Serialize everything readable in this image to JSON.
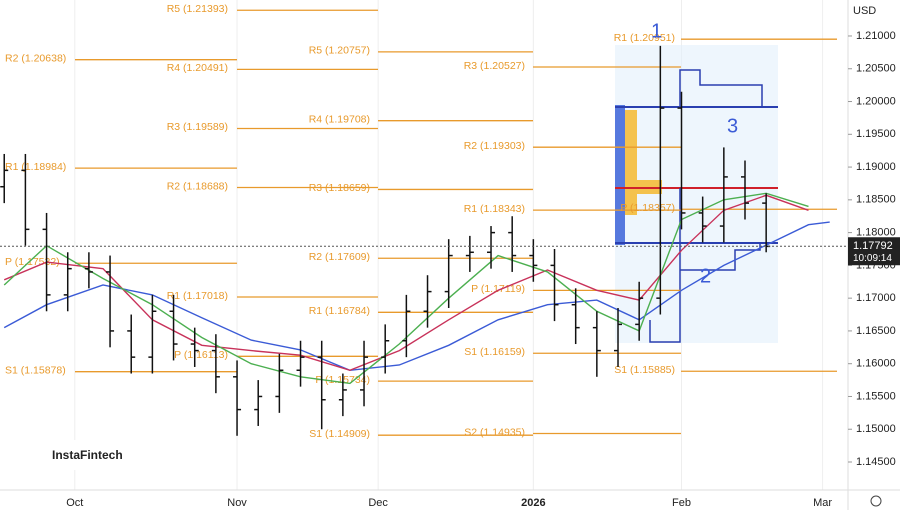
{
  "chart_data": {
    "type": "ohlc",
    "currency": "USD",
    "brand": "InstaFintech",
    "color": "#111111",
    "x": [
      -10,
      -7,
      -4,
      -1,
      2,
      5,
      8,
      11,
      14,
      17,
      20,
      23,
      26,
      29,
      32,
      35,
      38,
      41,
      44,
      47,
      50,
      53,
      56,
      59,
      62,
      65,
      68,
      71,
      74,
      77,
      80,
      83,
      86,
      89,
      92,
      95,
      98
    ],
    "open": [
      1.187,
      1.1895,
      1.1805,
      1.1705,
      1.1745,
      1.174,
      1.165,
      1.161,
      1.168,
      1.163,
      1.162,
      1.158,
      1.153,
      1.155,
      1.159,
      1.161,
      1.1545,
      1.156,
      1.161,
      1.1635,
      1.168,
      1.171,
      1.1765,
      1.177,
      1.18,
      1.1765,
      1.175,
      1.169,
      1.1655,
      1.162,
      1.166,
      1.17,
      1.199,
      1.183,
      1.181,
      1.1885,
      1.1845
    ],
    "high": [
      1.192,
      1.192,
      1.183,
      1.177,
      1.177,
      1.1765,
      1.1675,
      1.1705,
      1.1705,
      1.1655,
      1.1645,
      1.1605,
      1.1575,
      1.1615,
      1.1635,
      1.1635,
      1.1585,
      1.1635,
      1.166,
      1.1705,
      1.1735,
      1.179,
      1.1795,
      1.181,
      1.1825,
      1.179,
      1.1775,
      1.1715,
      1.168,
      1.1685,
      1.1725,
      1.2085,
      1.2015,
      1.1855,
      1.193,
      1.191,
      1.186
    ],
    "low": [
      1.1845,
      1.178,
      1.168,
      1.168,
      1.1715,
      1.1625,
      1.1585,
      1.1585,
      1.1605,
      1.1595,
      1.1555,
      1.149,
      1.1505,
      1.1525,
      1.1565,
      1.15,
      1.152,
      1.1535,
      1.1585,
      1.161,
      1.1655,
      1.1685,
      1.174,
      1.1745,
      1.174,
      1.1725,
      1.1665,
      1.163,
      1.158,
      1.1595,
      1.1635,
      1.1675,
      1.1805,
      1.1785,
      1.1785,
      1.182,
      1.177
    ],
    "close": [
      1.1895,
      1.1805,
      1.1705,
      1.1745,
      1.174,
      1.165,
      1.161,
      1.168,
      1.163,
      1.162,
      1.158,
      1.153,
      1.155,
      1.159,
      1.161,
      1.1545,
      1.156,
      1.161,
      1.1635,
      1.168,
      1.171,
      1.1765,
      1.177,
      1.18,
      1.1765,
      1.175,
      1.169,
      1.1655,
      1.162,
      1.166,
      1.17,
      1.199,
      1.183,
      1.181,
      1.1885,
      1.1845,
      1.1779
    ],
    "ma_x": [
      -10,
      -4,
      4,
      11,
      18,
      25,
      32,
      39,
      46,
      53,
      60,
      67,
      74,
      80,
      86,
      92,
      98,
      104,
      107
    ],
    "moving_averages": [
      {
        "color": "#3b5bd6",
        "values": [
          1.1655,
          1.169,
          1.172,
          1.1705,
          1.167,
          1.1636,
          1.1621,
          1.159,
          1.1598,
          1.1628,
          1.1667,
          1.169,
          1.1697,
          1.1667,
          1.1712,
          1.175,
          1.1781,
          1.1812,
          1.1816
        ]
      },
      {
        "color": "#c8325a",
        "values": [
          1.1728,
          1.1755,
          1.1745,
          1.1667,
          1.1628,
          1.162,
          1.1613,
          1.159,
          1.162,
          1.1667,
          1.1712,
          1.1743,
          1.1712,
          1.1697,
          1.1773,
          1.1834,
          1.1857,
          1.1834,
          null
        ]
      },
      {
        "color": "#4caf50",
        "values": [
          1.172,
          1.178,
          1.173,
          1.169,
          1.164,
          1.16,
          1.158,
          1.157,
          1.163,
          1.17,
          1.1765,
          1.174,
          1.168,
          1.165,
          1.182,
          1.185,
          1.186,
          1.184,
          null
        ]
      }
    ],
    "pivot_color": "#e89a2c",
    "pivot_groups": [
      [
        {
          "label": "R2 (1.20638)",
          "value": 1.20638
        },
        {
          "label": "R1 (1.18984)",
          "value": 1.18984
        },
        {
          "label": "P (1.17532)",
          "value": 1.17532
        },
        {
          "label": "S1 (1.15878)",
          "value": 1.15878
        }
      ],
      [
        {
          "label": "R5 (1.21393)",
          "value": 1.21393
        },
        {
          "label": "R4 (1.20491)",
          "value": 1.20491
        },
        {
          "label": "R3 (1.19589)",
          "value": 1.19589
        },
        {
          "label": "R2 (1.18688)",
          "value": 1.18688
        },
        {
          "label": "R1 (1.17018)",
          "value": 1.17018
        },
        {
          "label": "P (1.16113)",
          "value": 1.16113
        }
      ],
      [
        {
          "label": "R5 (1.20757)",
          "value": 1.20757
        },
        {
          "label": "R4 (1.19708)",
          "value": 1.19708
        },
        {
          "label": "R3 (1.18659)",
          "value": 1.18659
        },
        {
          "label": "R2 (1.17609)",
          "value": 1.17609
        },
        {
          "label": "R1 (1.16784)",
          "value": 1.16784
        },
        {
          "label": "P (1.15734)",
          "value": 1.15734
        },
        {
          "label": "S1 (1.14909)",
          "value": 1.14909
        }
      ],
      [
        {
          "label": "R3 (1.20527)",
          "value": 1.20527
        },
        {
          "label": "R2 (1.19303)",
          "value": 1.19303
        },
        {
          "label": "R1 (1.18343)",
          "value": 1.18343
        },
        {
          "label": "P (1.17119)",
          "value": 1.17119
        },
        {
          "label": "S1 (1.16159)",
          "value": 1.16159
        },
        {
          "label": "S2 (1.14935)",
          "value": 1.14935
        }
      ],
      [
        {
          "label": "R1 (1.20951)",
          "value": 1.20951
        },
        {
          "label": "P (1.18357)",
          "value": 1.18357
        },
        {
          "label": "S1 (1.15885)",
          "value": 1.15885
        }
      ]
    ],
    "last_price": 1.17792,
    "last_time": "10:09:14",
    "last_color": "#222222",
    "annotations": [
      "1",
      "2",
      "3"
    ],
    "xlim": [
      -10.6,
      109.6
    ],
    "xticks": [
      {
        "value": 0,
        "label": "Oct"
      },
      {
        "value": 23,
        "label": "Nov"
      },
      {
        "value": 43,
        "label": "Dec"
      },
      {
        "value": 65,
        "label": "2026"
      },
      {
        "value": 86,
        "label": "Feb"
      },
      {
        "value": 106,
        "label": "Mar"
      }
    ],
    "ylim": [
      1.14073,
      1.21549
    ],
    "yticks": [
      {
        "value": 1.21,
        "label": "1.21000"
      },
      {
        "value": 1.205,
        "label": "1.20500"
      },
      {
        "value": 1.2,
        "label": "1.20000"
      },
      {
        "value": 1.195,
        "label": "1.19500"
      },
      {
        "value": 1.19,
        "label": "1.19000"
      },
      {
        "value": 1.185,
        "label": "1.18500"
      },
      {
        "value": 1.18,
        "label": "1.18000"
      },
      {
        "value": 1.175,
        "label": "1.17500"
      },
      {
        "value": 1.17,
        "label": "1.17000"
      },
      {
        "value": 1.165,
        "label": "1.16500"
      },
      {
        "value": 1.16,
        "label": "1.16000"
      },
      {
        "value": 1.155,
        "label": "1.15500"
      },
      {
        "value": 1.15,
        "label": "1.15000"
      },
      {
        "value": 1.145,
        "label": "1.14500"
      }
    ],
    "grid": "x"
  }
}
